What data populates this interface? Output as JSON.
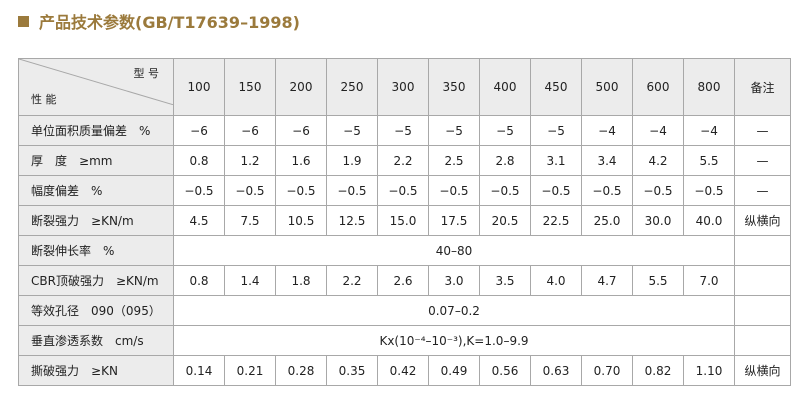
{
  "title": "产品技术参数(GB/T17639–1998)",
  "table": {
    "corner": {
      "top": "型 号",
      "bottom": "性 能"
    },
    "columns": [
      "100",
      "150",
      "200",
      "250",
      "300",
      "350",
      "400",
      "450",
      "500",
      "600",
      "800"
    ],
    "note_header": "备注",
    "rows": [
      {
        "label": "单位面积质量偏差",
        "unit": "%",
        "values": [
          "−6",
          "−6",
          "−6",
          "−5",
          "−5",
          "−5",
          "−5",
          "−5",
          "−4",
          "−4",
          "−4"
        ],
        "note": "—"
      },
      {
        "label": "厚　度",
        "unit": "≥mm",
        "values": [
          "0.8",
          "1.2",
          "1.6",
          "1.9",
          "2.2",
          "2.5",
          "2.8",
          "3.1",
          "3.4",
          "4.2",
          "5.5"
        ],
        "note": "—"
      },
      {
        "label": "幅度偏差",
        "unit": "%",
        "values": [
          "−0.5",
          "−0.5",
          "−0.5",
          "−0.5",
          "−0.5",
          "−0.5",
          "−0.5",
          "−0.5",
          "−0.5",
          "−0.5",
          "−0.5"
        ],
        "note": "—"
      },
      {
        "label": "断裂强力",
        "unit": "≥KN/m",
        "values": [
          "4.5",
          "7.5",
          "10.5",
          "12.5",
          "15.0",
          "17.5",
          "20.5",
          "22.5",
          "25.0",
          "30.0",
          "40.0"
        ],
        "note": "纵横向"
      },
      {
        "label": "断裂伸长率",
        "unit": "%",
        "span_value": "40–80"
      },
      {
        "label": "CBR顶破强力",
        "unit": "≥KN/m",
        "values": [
          "0.8",
          "1.4",
          "1.8",
          "2.2",
          "2.6",
          "3.0",
          "3.5",
          "4.0",
          "4.7",
          "5.5",
          "7.0"
        ]
      },
      {
        "label": "等效孔径",
        "unit": "090（095）",
        "span_value": "0.07–0.2"
      },
      {
        "label": "垂直渗透系数",
        "unit": "cm/s",
        "span_value": "Kx(10⁻⁴–10⁻³),K=1.0–9.9"
      },
      {
        "label": "撕破强力",
        "unit": "≥KN",
        "values": [
          "0.14",
          "0.21",
          "0.28",
          "0.35",
          "0.42",
          "0.49",
          "0.56",
          "0.63",
          "0.70",
          "0.82",
          "1.10"
        ],
        "note": "纵横向"
      }
    ]
  }
}
